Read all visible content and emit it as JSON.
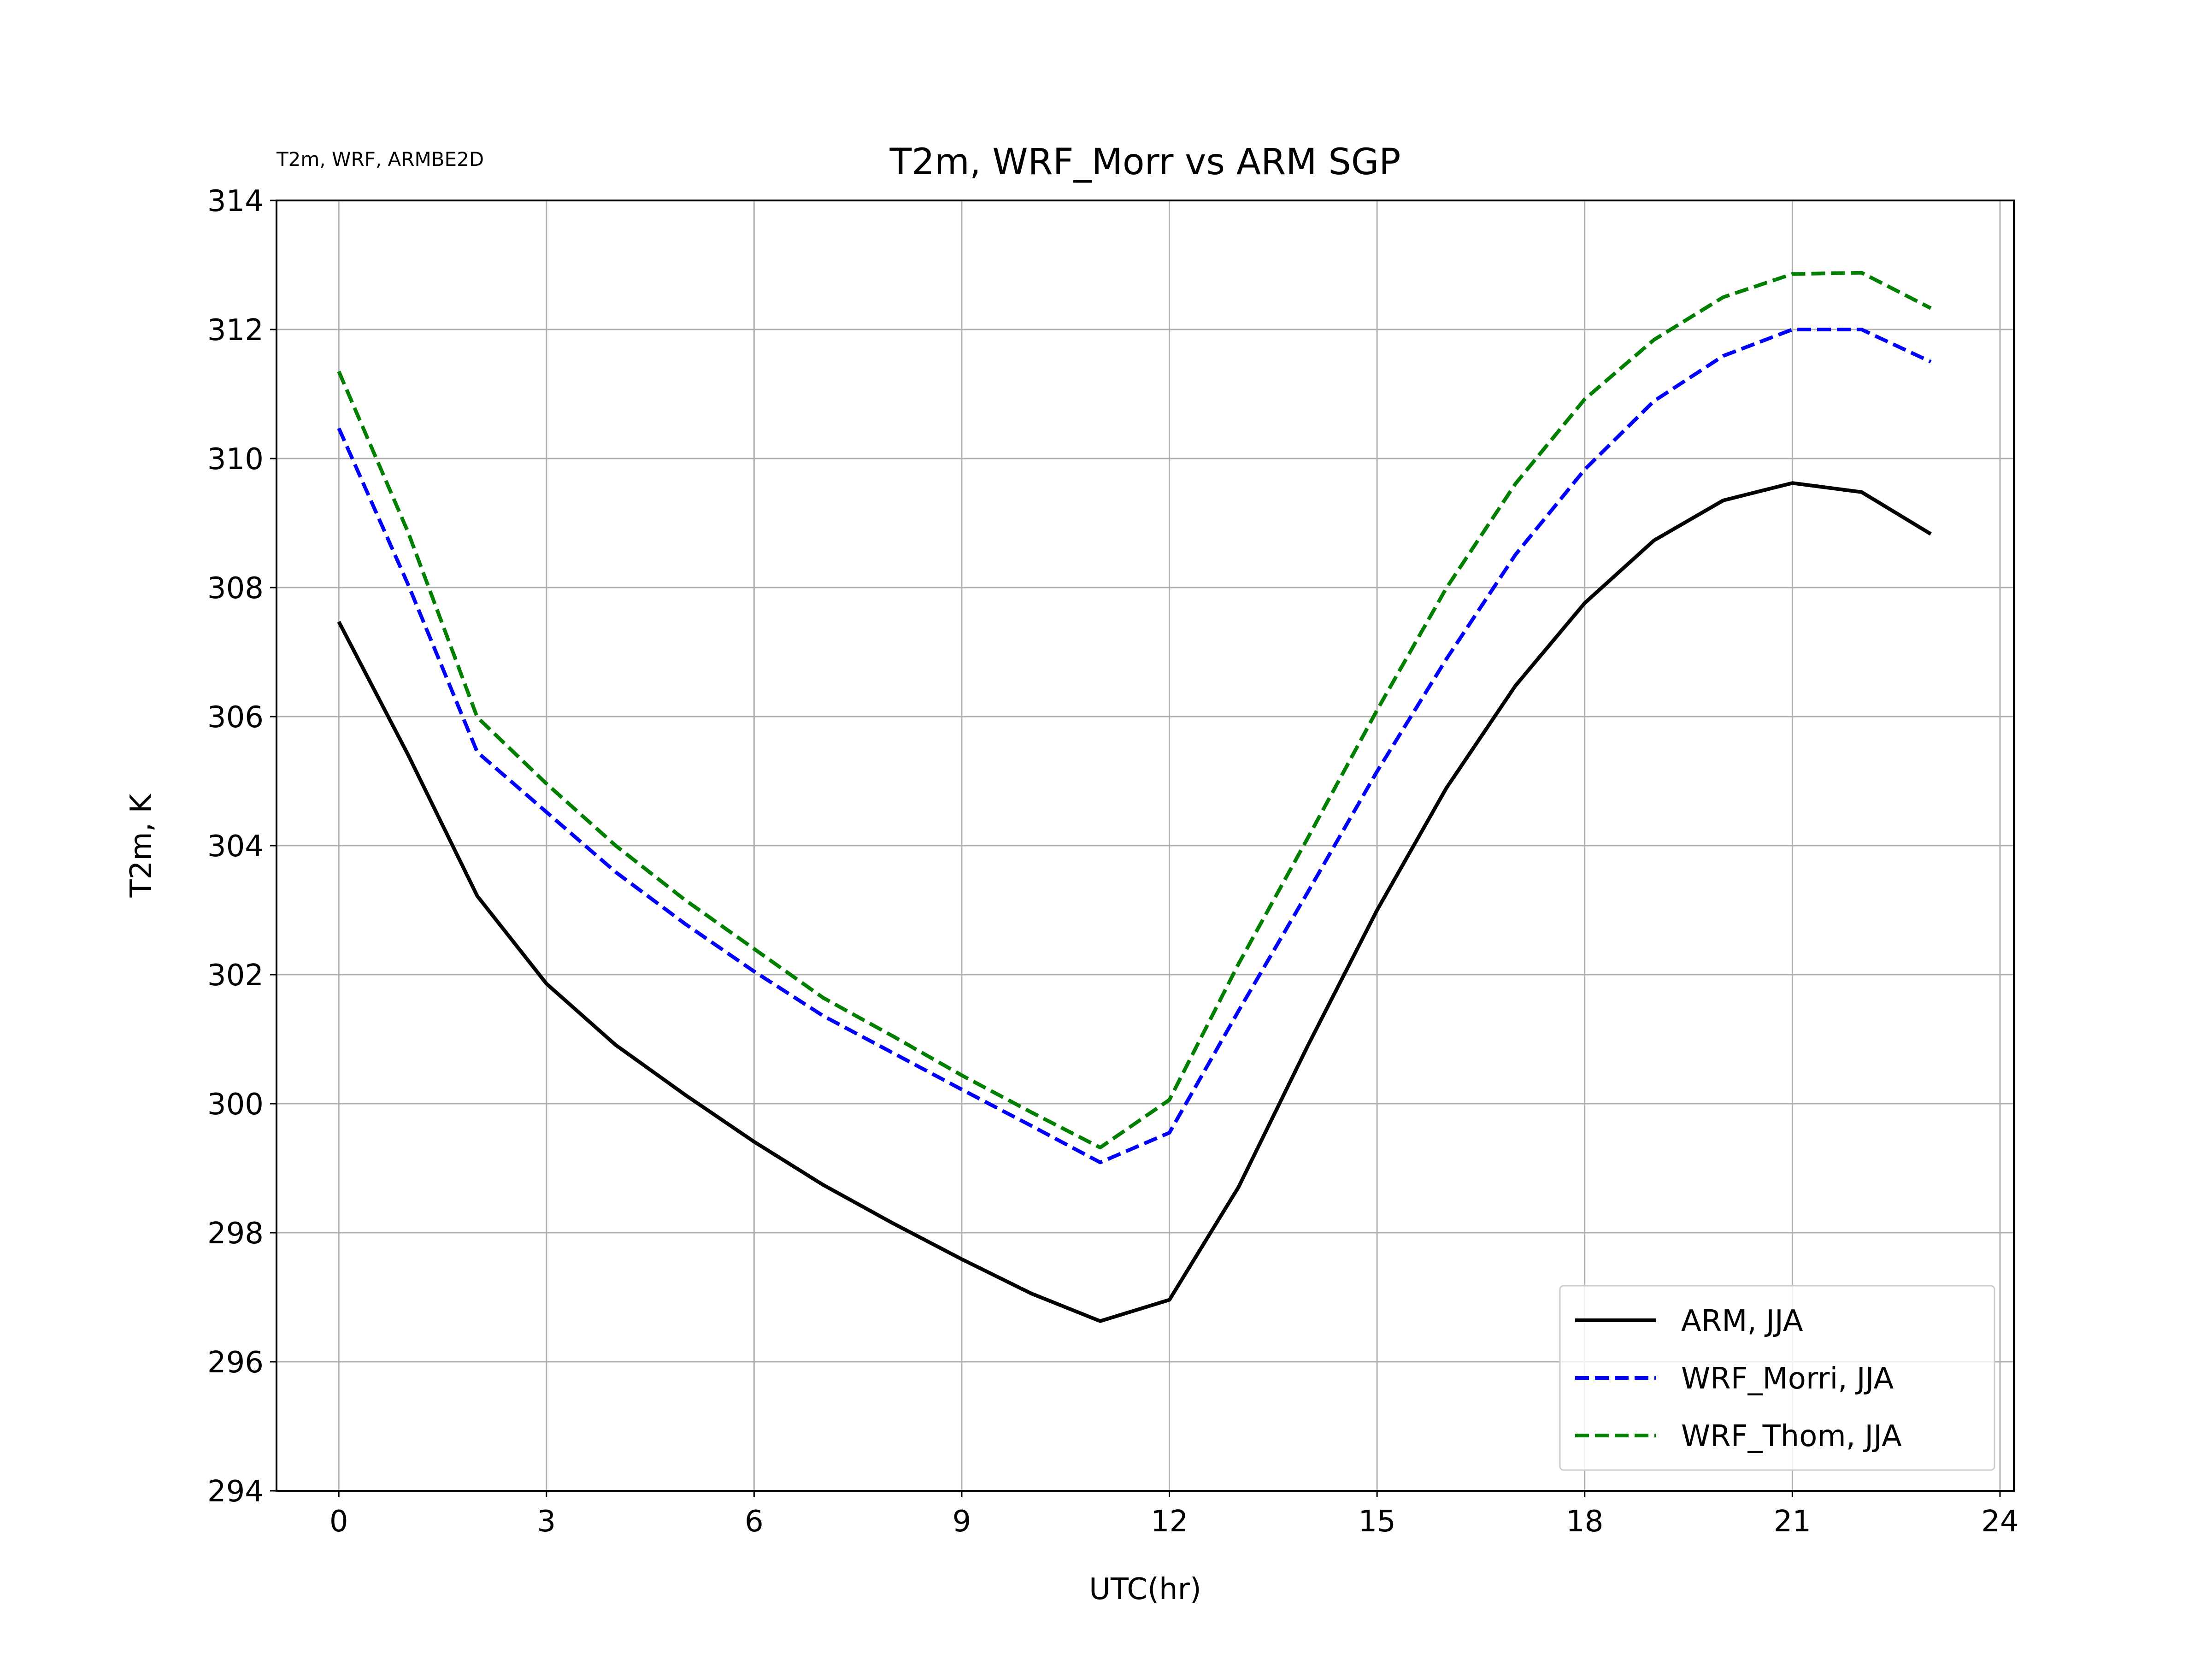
{
  "chart_data": {
    "type": "line",
    "title": "T2m, WRF_Morr vs ARM SGP",
    "corner_note": "T2m, WRF, ARMBE2D",
    "xlabel": "UTC(hr)",
    "ylabel": "T2m, K",
    "xlim": [
      -0.9,
      24.2
    ],
    "ylim": [
      294,
      314
    ],
    "xticks": [
      0,
      3,
      6,
      9,
      12,
      15,
      18,
      21,
      24
    ],
    "xtick_labels": [
      "0",
      "3",
      "6",
      "9",
      "12",
      "15",
      "18",
      "21",
      "24"
    ],
    "yticks": [
      294,
      296,
      298,
      300,
      302,
      304,
      306,
      308,
      310,
      312,
      314
    ],
    "ytick_labels": [
      "294",
      "296",
      "298",
      "300",
      "302",
      "304",
      "306",
      "308",
      "310",
      "312",
      "314"
    ],
    "grid": true,
    "legend_position": "lower-right",
    "x": [
      0,
      1,
      2,
      3,
      4,
      5,
      6,
      7,
      8,
      9,
      10,
      11,
      12,
      13,
      14,
      15,
      16,
      17,
      18,
      19,
      20,
      21,
      22,
      23
    ],
    "series": [
      {
        "name": "ARM, JJA",
        "color": "#000000",
        "style": "solid",
        "values": [
          307.47,
          305.41,
          303.22,
          301.86,
          300.91,
          300.14,
          299.41,
          298.74,
          298.15,
          297.59,
          297.06,
          296.63,
          296.96,
          298.71,
          300.9,
          303.0,
          304.89,
          306.48,
          307.76,
          308.73,
          309.35,
          309.62,
          309.48,
          308.83
        ]
      },
      {
        "name": "WRF_Morri, JJA",
        "color": "#0000ff",
        "style": "dashed",
        "values": [
          310.47,
          308.05,
          305.45,
          304.52,
          303.59,
          302.79,
          302.05,
          301.36,
          300.79,
          300.22,
          299.66,
          299.09,
          299.55,
          301.44,
          303.28,
          305.15,
          306.89,
          308.51,
          309.83,
          310.89,
          311.59,
          312.0,
          312.0,
          311.5
        ]
      },
      {
        "name": "WRF_Thom, JJA",
        "color": "#007f00",
        "style": "dashed",
        "values": [
          311.35,
          308.86,
          305.99,
          304.96,
          304.0,
          303.16,
          302.4,
          301.64,
          301.05,
          300.44,
          299.87,
          299.32,
          300.06,
          302.17,
          304.12,
          306.1,
          307.99,
          309.61,
          310.92,
          311.84,
          312.5,
          312.86,
          312.88,
          312.33
        ]
      }
    ]
  }
}
